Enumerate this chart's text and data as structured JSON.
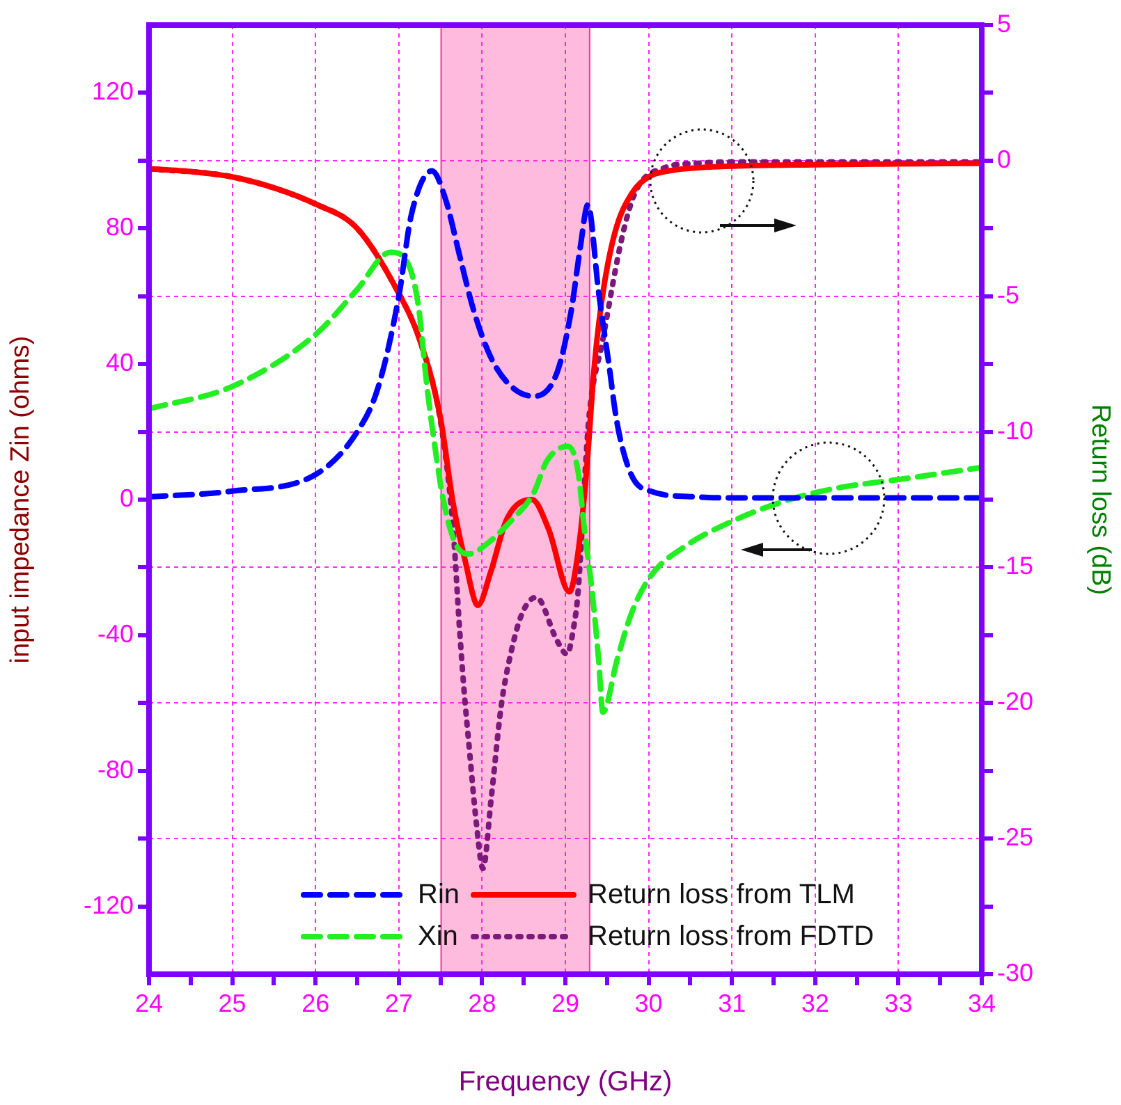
{
  "chart_data": {
    "type": "line",
    "xlabel": "Frequency (GHz)",
    "ylabel": "input impedance Zin (ohms)",
    "y2label": "Return loss (dB)",
    "xlim": [
      24,
      34
    ],
    "xticks": [
      24,
      {
        "value": 24.5,
        "label": null
      },
      25,
      {
        "value": 25.5,
        "label": null
      },
      26,
      {
        "value": 26.5,
        "label": null
      },
      27,
      {
        "value": 27.5,
        "label": null
      },
      28,
      {
        "value": 28.5,
        "label": null
      },
      29,
      {
        "value": 29.5,
        "label": null
      },
      30,
      {
        "value": 30.5,
        "label": null
      },
      31,
      {
        "value": 31.5,
        "label": null
      },
      32,
      {
        "value": 32.5,
        "label": null
      },
      33,
      {
        "value": 33.5,
        "label": null
      },
      34
    ],
    "ylim": [
      -140,
      140
    ],
    "yticks": [
      -120,
      {
        "value": -100,
        "label": null
      },
      -80,
      {
        "value": -60,
        "label": null
      },
      -40,
      {
        "value": -20,
        "label": null
      },
      0,
      {
        "value": 20,
        "label": null
      },
      40,
      {
        "value": 60,
        "label": null
      },
      80,
      {
        "value": 100,
        "label": null
      },
      120
    ],
    "y2lim": [
      -30,
      5
    ],
    "y2ticks": [
      -30,
      {
        "value": -27.5,
        "label": null
      },
      -25,
      {
        "value": -22.5,
        "label": null
      },
      -20,
      {
        "value": -17.5,
        "label": null
      },
      -15,
      {
        "value": -12.5,
        "label": null
      },
      -10,
      {
        "value": -7.5,
        "label": null
      },
      -5,
      {
        "value": -2.5,
        "label": null
      },
      0,
      {
        "value": 2.5,
        "label": null
      },
      5
    ],
    "grid": true,
    "legend": "bottom",
    "marker": "none",
    "bands": [
      {
        "axis": "x",
        "from": 27.5,
        "to": 29.3,
        "color": "#ff3399"
      }
    ],
    "series": [
      {
        "name": "Rin",
        "color": "#0000ff",
        "line_style": "dashed",
        "x": [
          24,
          25,
          26,
          26.5,
          26.75,
          27,
          27.15,
          27.4,
          27.56,
          27.73,
          27.9,
          28.11,
          28.35,
          28.62,
          28.9,
          29.07,
          29.18,
          29.27,
          29.4,
          29.52,
          29.62,
          29.79,
          30.02,
          30.57,
          31,
          32,
          33,
          34
        ],
        "values": [
          0.8,
          2.5,
          7.4,
          20,
          33,
          60,
          84,
          97,
          88.7,
          72,
          55.7,
          41.7,
          33.4,
          30.5,
          37.5,
          55.7,
          74.6,
          87,
          61,
          40.4,
          22.7,
          7.4,
          2.5,
          0.8,
          0.5,
          0.5,
          0.5,
          0.5
        ]
      },
      {
        "name": "Xin",
        "color": "#22ee22",
        "line_style": "dashed",
        "x": [
          24,
          25,
          26,
          26.5,
          26.9,
          27.09,
          27.23,
          27.34,
          27.45,
          27.53,
          27.68,
          27.85,
          28.06,
          28.35,
          28.62,
          28.78,
          29.03,
          29.15,
          29.23,
          29.32,
          29.4,
          29.45,
          29.62,
          29.79,
          30.02,
          30.4,
          31.02,
          31.69,
          32.24,
          33.08,
          34
        ],
        "values": [
          26.8,
          33.4,
          48.7,
          62,
          73,
          70.5,
          58,
          33,
          12.8,
          0.4,
          -13,
          -16,
          -13,
          -6.2,
          2,
          11.5,
          15.7,
          8.7,
          -9,
          -26.8,
          -47.4,
          -62.7,
          -47.4,
          -33.8,
          -22.7,
          -14.4,
          -6.2,
          0,
          3.3,
          6.2,
          9.5
        ]
      },
      {
        "name": "Return loss from TLM",
        "color": "#ff0000",
        "line_style": "solid",
        "axis": "y2",
        "x": [
          24,
          24.5,
          25,
          25.5,
          26,
          26.5,
          27,
          27.25,
          27.5,
          27.65,
          27.8,
          27.95,
          28.1,
          28.3,
          28.6,
          28.8,
          29.05,
          29.15,
          29.25,
          29.35,
          29.45,
          29.6,
          29.8,
          30,
          30.3,
          30.6,
          31,
          32,
          33,
          34
        ],
        "values": [
          -0.3,
          -0.4,
          -0.6,
          -1,
          -1.6,
          -2.5,
          -4.9,
          -6.6,
          -9.5,
          -12.6,
          -14.8,
          -16.4,
          -15.2,
          -13.2,
          -12.5,
          -13.6,
          -15.9,
          -14.5,
          -11.6,
          -7.5,
          -4.9,
          -2.6,
          -1.2,
          -0.6,
          -0.35,
          -0.26,
          -0.2,
          -0.15,
          -0.12,
          -0.1
        ]
      },
      {
        "name": "Return loss from FDTD",
        "color": "#7b1a7b",
        "line_style": "dotted",
        "axis": "y2",
        "x": [
          24,
          25,
          26,
          26.5,
          27,
          27.25,
          27.5,
          27.65,
          27.73,
          27.78,
          27.85,
          27.93,
          28.01,
          28.11,
          28.23,
          28.35,
          28.48,
          28.65,
          28.9,
          29.02,
          29.1,
          29.15,
          29.28,
          29.45,
          29.69,
          29.85,
          30.19,
          30.57,
          31,
          32,
          33,
          34
        ],
        "values": [
          -0.3,
          -0.6,
          -1.6,
          -2.5,
          -4.9,
          -6.6,
          -9.6,
          -13.5,
          -17.3,
          -19.4,
          -21.8,
          -24.4,
          -26.1,
          -23.5,
          -20.1,
          -18.1,
          -16.7,
          -16.1,
          -17.7,
          -18.2,
          -17.2,
          -16,
          -9.6,
          -6.6,
          -2.7,
          -1.1,
          -0.26,
          -0.1,
          -0.05,
          -0.05,
          -0.05,
          -0.05
        ]
      }
    ]
  }
}
